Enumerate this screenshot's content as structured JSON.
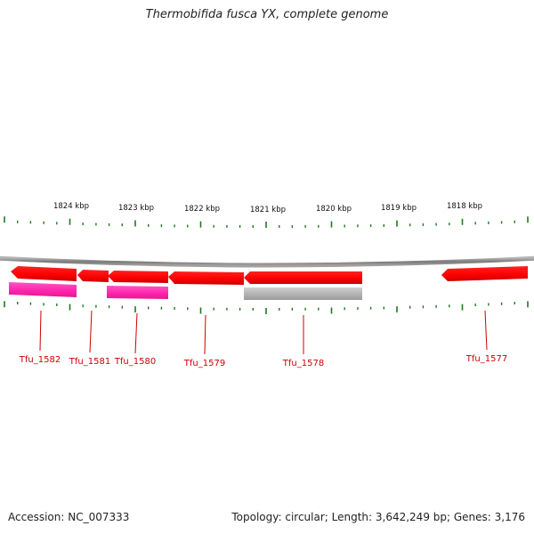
{
  "title": "Thermobifida fusca YX, complete genome",
  "footer": {
    "accession": "Accession: NC_007333",
    "summary": "Topology: circular; Length: 3,642,249 bp; Genes: 3,176"
  },
  "colors": {
    "backbone": "#8a8a8a",
    "tick": "#1e7a1e",
    "gene": "#ff0000",
    "cds": "#ff33aa",
    "pseudo": "#b0b0b0",
    "label": "#cc0000"
  },
  "scale_labels": [
    "1824 kbp",
    "1823 kbp",
    "1822 kbp",
    "1821 kbp",
    "1820 kbp",
    "1819 kbp",
    "1818 kbp"
  ],
  "genes": [
    {
      "name": "Tfu_1582",
      "strand": "-",
      "cds": "pink"
    },
    {
      "name": "Tfu_1581",
      "strand": "-",
      "cds": "none"
    },
    {
      "name": "Tfu_1580",
      "strand": "-",
      "cds": "pink"
    },
    {
      "name": "Tfu_1579",
      "strand": "-",
      "cds": "none"
    },
    {
      "name": "Tfu_1578",
      "strand": "-",
      "cds": "gray"
    },
    {
      "name": "Tfu_1577",
      "strand": "-",
      "cds": "none"
    }
  ]
}
